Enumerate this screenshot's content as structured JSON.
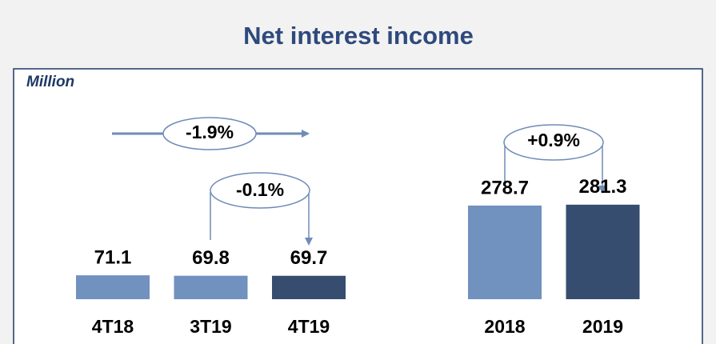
{
  "chart_data": {
    "type": "bar",
    "title": "Net interest income",
    "y_label": "Million",
    "categories": [
      "4T18",
      "3T19",
      "4T19",
      "2018",
      "2019"
    ],
    "values": [
      71.1,
      69.8,
      69.7,
      278.7,
      281.3
    ],
    "colors": [
      "#7191bf",
      "#7191bf",
      "#364d6f",
      "#7191bf",
      "#364d6f"
    ],
    "ylim": [
      0,
      300
    ],
    "annotations": [
      "-1.9%",
      "-0.1%",
      "+0.9%"
    ]
  }
}
